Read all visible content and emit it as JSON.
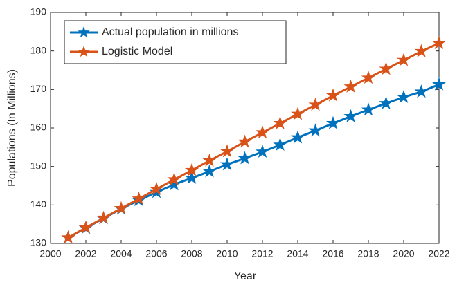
{
  "chart_data": {
    "type": "line",
    "x_label": "Year",
    "y_label": "Populations (In Millions)",
    "x": [
      2001,
      2002,
      2003,
      2004,
      2005,
      2006,
      2007,
      2008,
      2009,
      2010,
      2011,
      2012,
      2013,
      2014,
      2015,
      2016,
      2017,
      2018,
      2019,
      2020,
      2021,
      2022
    ],
    "series": [
      {
        "name": "Actual population in millions",
        "color": "#0072bd",
        "values": [
          131.5,
          134.0,
          136.5,
          139.0,
          141.2,
          143.3,
          145.3,
          147.0,
          148.7,
          150.5,
          152.1,
          153.8,
          155.6,
          157.5,
          159.3,
          161.2,
          163.0,
          164.7,
          166.4,
          168.0,
          169.4,
          171.3
        ]
      },
      {
        "name": "Logistic Model",
        "color": "#d95319",
        "values": [
          131.5,
          134.1,
          136.6,
          139.1,
          141.6,
          144.1,
          146.6,
          149.0,
          151.5,
          153.9,
          156.4,
          158.8,
          161.2,
          163.6,
          166.0,
          168.4,
          170.7,
          173.0,
          175.3,
          177.6,
          179.9,
          182.0
        ]
      }
    ],
    "xlim": [
      2000,
      2022
    ],
    "xticks": [
      2000,
      2002,
      2004,
      2006,
      2008,
      2010,
      2012,
      2014,
      2016,
      2018,
      2020,
      2022
    ],
    "ylim": [
      130,
      190
    ],
    "yticks": [
      130,
      140,
      150,
      160,
      170,
      180,
      190
    ],
    "grid": false,
    "legend": "upper left",
    "marker": "star"
  }
}
